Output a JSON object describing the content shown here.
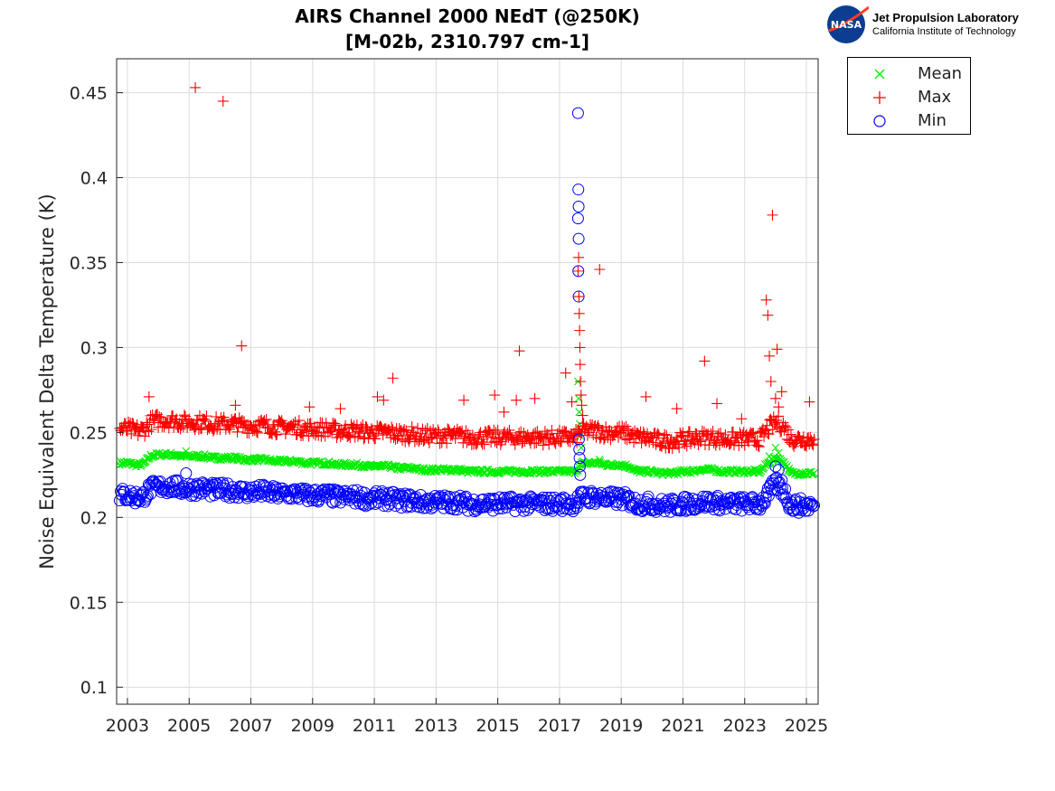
{
  "chart_data": {
    "type": "scatter",
    "title": [
      "AIRS Channel 2000 NEdT (@250K)",
      "[M-02b, 2310.797 cm-1]"
    ],
    "xlabel": "",
    "ylabel": "Noise Equivalent Delta Temperature (K)",
    "xlim": [
      2002.65,
      2025.38
    ],
    "ylim": [
      0.09,
      0.47
    ],
    "xticks": [
      2003,
      2005,
      2007,
      2009,
      2011,
      2013,
      2015,
      2017,
      2019,
      2021,
      2023,
      2025
    ],
    "yticks": [
      0.1,
      0.15,
      0.2,
      0.25,
      0.3,
      0.35,
      0.4,
      0.45
    ],
    "ytick_labels": [
      "0.1",
      "0.15",
      "0.2",
      "0.25",
      "0.3",
      "0.35",
      "0.4",
      "0.45"
    ],
    "grid": true,
    "legend_position": "outside-top-right",
    "x_start": 2002.75,
    "x_step": 0.25,
    "series": [
      {
        "name": "Mean",
        "marker": "x",
        "color": "#00ee00",
        "values": [
          0.232,
          0.232,
          0.231,
          0.231,
          0.236,
          0.237,
          0.237,
          0.237,
          0.236,
          0.236,
          0.236,
          0.236,
          0.235,
          0.235,
          0.235,
          0.235,
          0.234,
          0.234,
          0.234,
          0.234,
          0.233,
          0.233,
          0.233,
          0.233,
          0.232,
          0.232,
          0.232,
          0.232,
          0.231,
          0.231,
          0.231,
          0.231,
          0.23,
          0.23,
          0.23,
          0.23,
          0.229,
          0.229,
          0.229,
          0.228,
          0.228,
          0.228,
          0.228,
          0.228,
          0.228,
          0.227,
          0.227,
          0.227,
          0.227,
          0.227,
          0.227,
          0.227,
          0.227,
          0.227,
          0.227,
          0.227,
          0.227,
          0.227,
          0.227,
          0.227,
          0.232,
          0.232,
          0.232,
          0.231,
          0.231,
          0.231,
          0.23,
          0.227,
          0.227,
          0.227,
          0.226,
          0.226,
          0.226,
          0.227,
          0.227,
          0.228,
          0.228,
          0.228,
          0.227,
          0.227,
          0.227,
          0.227,
          0.227,
          0.227,
          0.232,
          0.235,
          0.233,
          0.226,
          0.226,
          0.226,
          0.226
        ],
        "extra": [
          [
            2004.9,
            0.239
          ],
          [
            2017.6,
            0.28
          ],
          [
            2017.62,
            0.27
          ],
          [
            2017.64,
            0.262
          ],
          [
            2017.66,
            0.255
          ],
          [
            2017.68,
            0.248
          ],
          [
            2017.7,
            0.241
          ],
          [
            2018.3,
            0.234
          ],
          [
            2023.8,
            0.236
          ],
          [
            2024.0,
            0.241
          ],
          [
            2024.1,
            0.238
          ]
        ]
      },
      {
        "name": "Max",
        "marker": "+",
        "color": "#ff0000",
        "values": [
          0.252,
          0.252,
          0.251,
          0.251,
          0.256,
          0.257,
          0.257,
          0.257,
          0.256,
          0.256,
          0.256,
          0.256,
          0.255,
          0.255,
          0.255,
          0.255,
          0.254,
          0.254,
          0.254,
          0.254,
          0.253,
          0.253,
          0.253,
          0.253,
          0.252,
          0.252,
          0.252,
          0.252,
          0.251,
          0.251,
          0.251,
          0.251,
          0.25,
          0.25,
          0.25,
          0.25,
          0.249,
          0.249,
          0.249,
          0.248,
          0.248,
          0.248,
          0.248,
          0.248,
          0.248,
          0.247,
          0.247,
          0.247,
          0.247,
          0.247,
          0.247,
          0.247,
          0.247,
          0.247,
          0.247,
          0.247,
          0.247,
          0.247,
          0.247,
          0.247,
          0.251,
          0.251,
          0.251,
          0.25,
          0.25,
          0.25,
          0.249,
          0.247,
          0.247,
          0.246,
          0.245,
          0.245,
          0.245,
          0.246,
          0.246,
          0.247,
          0.247,
          0.247,
          0.246,
          0.246,
          0.246,
          0.246,
          0.246,
          0.246,
          0.252,
          0.256,
          0.254,
          0.246,
          0.246,
          0.246,
          0.246
        ],
        "extra": [
          [
            2005.2,
            0.453
          ],
          [
            2006.1,
            0.445
          ],
          [
            2006.7,
            0.301
          ],
          [
            2003.7,
            0.271
          ],
          [
            2006.5,
            0.266
          ],
          [
            2008.9,
            0.265
          ],
          [
            2009.9,
            0.264
          ],
          [
            2011.1,
            0.271
          ],
          [
            2011.3,
            0.269
          ],
          [
            2011.6,
            0.282
          ],
          [
            2013.9,
            0.269
          ],
          [
            2014.9,
            0.272
          ],
          [
            2015.2,
            0.262
          ],
          [
            2015.6,
            0.269
          ],
          [
            2015.7,
            0.298
          ],
          [
            2016.2,
            0.27
          ],
          [
            2017.2,
            0.285
          ],
          [
            2017.4,
            0.268
          ],
          [
            2017.6,
            0.345
          ],
          [
            2017.62,
            0.353
          ],
          [
            2017.63,
            0.33
          ],
          [
            2017.64,
            0.32
          ],
          [
            2017.65,
            0.31
          ],
          [
            2017.66,
            0.3
          ],
          [
            2017.67,
            0.29
          ],
          [
            2017.68,
            0.28
          ],
          [
            2017.7,
            0.272
          ],
          [
            2017.72,
            0.266
          ],
          [
            2017.75,
            0.26
          ],
          [
            2018.3,
            0.346
          ],
          [
            2019.8,
            0.271
          ],
          [
            2020.8,
            0.264
          ],
          [
            2021.7,
            0.292
          ],
          [
            2022.1,
            0.267
          ],
          [
            2022.9,
            0.258
          ],
          [
            2023.7,
            0.328
          ],
          [
            2023.75,
            0.319
          ],
          [
            2023.8,
            0.295
          ],
          [
            2023.85,
            0.28
          ],
          [
            2023.9,
            0.378
          ],
          [
            2024.0,
            0.27
          ],
          [
            2024.05,
            0.299
          ],
          [
            2024.1,
            0.265
          ],
          [
            2024.2,
            0.274
          ],
          [
            2025.1,
            0.268
          ]
        ]
      },
      {
        "name": "Min",
        "marker": "o",
        "color": "#0000ff",
        "values": [
          0.213,
          0.213,
          0.212,
          0.212,
          0.217,
          0.218,
          0.218,
          0.218,
          0.217,
          0.217,
          0.217,
          0.217,
          0.216,
          0.216,
          0.216,
          0.216,
          0.215,
          0.215,
          0.215,
          0.215,
          0.214,
          0.214,
          0.214,
          0.214,
          0.213,
          0.213,
          0.213,
          0.213,
          0.212,
          0.212,
          0.212,
          0.212,
          0.211,
          0.211,
          0.211,
          0.211,
          0.21,
          0.21,
          0.21,
          0.209,
          0.209,
          0.209,
          0.209,
          0.209,
          0.209,
          0.208,
          0.208,
          0.208,
          0.208,
          0.208,
          0.208,
          0.208,
          0.208,
          0.208,
          0.208,
          0.208,
          0.208,
          0.208,
          0.208,
          0.208,
          0.212,
          0.212,
          0.212,
          0.211,
          0.211,
          0.211,
          0.21,
          0.208,
          0.208,
          0.208,
          0.207,
          0.207,
          0.207,
          0.208,
          0.208,
          0.209,
          0.209,
          0.209,
          0.208,
          0.208,
          0.208,
          0.208,
          0.208,
          0.208,
          0.213,
          0.22,
          0.216,
          0.207,
          0.207,
          0.207,
          0.207
        ],
        "extra": [
          [
            2004.9,
            0.226
          ],
          [
            2017.6,
            0.438
          ],
          [
            2017.61,
            0.393
          ],
          [
            2017.62,
            0.383
          ],
          [
            2017.6,
            0.376
          ],
          [
            2017.62,
            0.364
          ],
          [
            2017.61,
            0.345
          ],
          [
            2017.62,
            0.33
          ],
          [
            2017.63,
            0.246
          ],
          [
            2017.64,
            0.24
          ],
          [
            2017.65,
            0.235
          ],
          [
            2017.66,
            0.23
          ],
          [
            2017.67,
            0.225
          ],
          [
            2024.0,
            0.23
          ],
          [
            2024.1,
            0.228
          ],
          [
            2024.2,
            0.222
          ]
        ]
      }
    ]
  },
  "logo": {
    "line1": "Jet Propulsion Laboratory",
    "line2": "California Institute of Technology",
    "badge": "NASA"
  }
}
